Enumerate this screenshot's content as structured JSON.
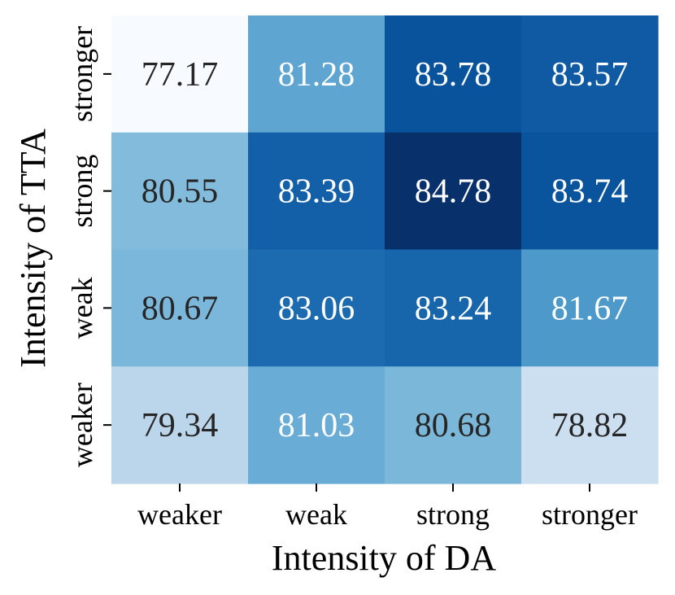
{
  "chart_data": {
    "type": "heatmap",
    "title": "",
    "xlabel": "Intensity of DA",
    "ylabel": "Intensity of TTA",
    "x_categories": [
      "weaker",
      "weak",
      "strong",
      "stronger"
    ],
    "y_categories": [
      "stronger",
      "strong",
      "weak",
      "weaker"
    ],
    "values": [
      [
        77.17,
        81.28,
        83.78,
        83.57
      ],
      [
        80.55,
        83.39,
        84.78,
        83.74
      ],
      [
        80.67,
        83.06,
        83.24,
        81.67
      ],
      [
        79.34,
        81.03,
        80.68,
        78.82
      ]
    ],
    "colormap": "Blues",
    "vmin": 77.17,
    "vmax": 84.78,
    "grid": false,
    "colorbar": false,
    "annotation_colors": {
      "dark_text": "#262626",
      "light_text": "#ffffff"
    }
  }
}
